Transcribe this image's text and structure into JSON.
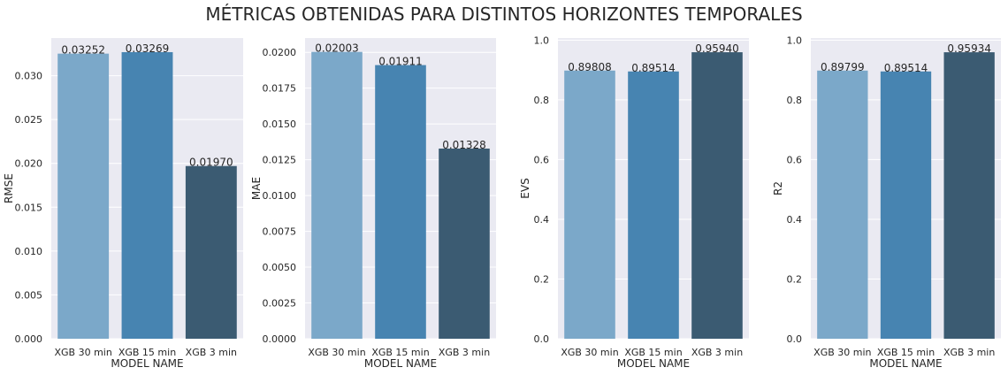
{
  "figure": {
    "title": "MÉTRICAS OBTENIDAS PARA DISTINTOS HORIZONTES TEMPORALES"
  },
  "chart_data": [
    {
      "type": "bar",
      "categories": [
        "XGB 30 min",
        "XGB 15 min",
        "XGB 3 min"
      ],
      "values": [
        0.03252,
        0.03269,
        0.0197
      ],
      "value_labels": [
        "0.03252",
        "0.03269",
        "0.01970"
      ],
      "xlabel": "MODEL NAME",
      "ylabel": "RMSE",
      "ylim": [
        0,
        0.0343
      ],
      "yticks": [
        0,
        0.005,
        0.01,
        0.015,
        0.02,
        0.025,
        0.03
      ],
      "ytick_labels": [
        "0.000",
        "0.005",
        "0.010",
        "0.015",
        "0.020",
        "0.025",
        "0.030"
      ],
      "colors": [
        "#7ba8c9",
        "#4784b1",
        "#3b5b72"
      ],
      "grid": true
    },
    {
      "type": "bar",
      "categories": [
        "XGB 30 min",
        "XGB 15 min",
        "XGB 3 min"
      ],
      "values": [
        0.02003,
        0.01911,
        0.01328
      ],
      "value_labels": [
        "0.02003",
        "0.01911",
        "0.01328"
      ],
      "xlabel": "MODEL NAME",
      "ylabel": "MAE",
      "ylim": [
        0,
        0.021
      ],
      "yticks": [
        0,
        0.0025,
        0.005,
        0.0075,
        0.01,
        0.0125,
        0.015,
        0.0175,
        0.02
      ],
      "ytick_labels": [
        "0.0000",
        "0.0025",
        "0.0050",
        "0.0075",
        "0.0100",
        "0.0125",
        "0.0150",
        "0.0175",
        "0.0200"
      ],
      "colors": [
        "#7ba8c9",
        "#4784b1",
        "#3b5b72"
      ],
      "grid": true
    },
    {
      "type": "bar",
      "categories": [
        "XGB 30 min",
        "XGB 15 min",
        "XGB 3 min"
      ],
      "values": [
        0.89808,
        0.89514,
        0.9594
      ],
      "value_labels": [
        "0.89808",
        "0.89514",
        "0.95940"
      ],
      "xlabel": "MODEL NAME",
      "ylabel": "EVS",
      "ylim": [
        0,
        1.007
      ],
      "yticks": [
        0,
        0.2,
        0.4,
        0.6,
        0.8,
        1.0
      ],
      "ytick_labels": [
        "0.0",
        "0.2",
        "0.4",
        "0.6",
        "0.8",
        "1.0"
      ],
      "colors": [
        "#7ba8c9",
        "#4784b1",
        "#3b5b72"
      ],
      "grid": true
    },
    {
      "type": "bar",
      "categories": [
        "XGB 30 min",
        "XGB 15 min",
        "XGB 3 min"
      ],
      "values": [
        0.89799,
        0.89514,
        0.95934
      ],
      "value_labels": [
        "0.89799",
        "0.89514",
        "0.95934"
      ],
      "xlabel": "MODEL NAME",
      "ylabel": "R2",
      "ylim": [
        0,
        1.007
      ],
      "yticks": [
        0,
        0.2,
        0.4,
        0.6,
        0.8,
        1.0
      ],
      "ytick_labels": [
        "0.0",
        "0.2",
        "0.4",
        "0.6",
        "0.8",
        "1.0"
      ],
      "colors": [
        "#7ba8c9",
        "#4784b1",
        "#3b5b72"
      ],
      "grid": true
    }
  ]
}
